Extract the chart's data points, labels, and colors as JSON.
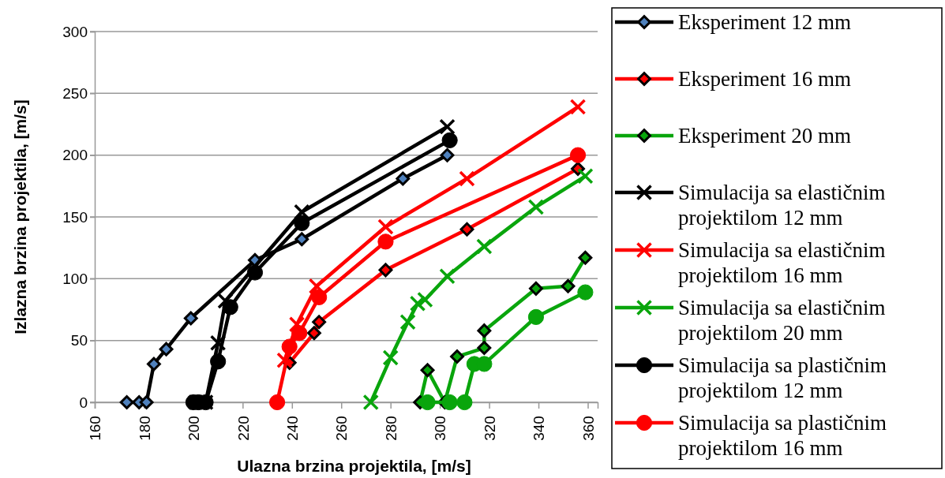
{
  "chart_data": {
    "type": "line",
    "xlabel": "Ulazna brzina projektila, [m/s]",
    "ylabel": "Izlazna brzina projektila, [m/s]",
    "xlim": [
      160,
      364
    ],
    "xticks": [
      160,
      180,
      200,
      220,
      240,
      260,
      280,
      300,
      320,
      340,
      360
    ],
    "ylim": [
      0,
      300
    ],
    "yticks": [
      0,
      50,
      100,
      150,
      200,
      250,
      300
    ],
    "grid": "y",
    "legend": "right",
    "series": [
      {
        "name": "Eksperiment 12 mm",
        "color": "#000000",
        "marker": "diamond",
        "x": [
          173,
          178,
          181,
          184,
          189,
          199,
          225,
          244,
          285,
          303
        ],
        "values": [
          0,
          0,
          0,
          31,
          43,
          68,
          115,
          132,
          181,
          200
        ],
        "colors": [
          "#4f81bd",
          "#4f81bd",
          "#4f81bd",
          "#4f81bd",
          "#4f81bd",
          "#4f81bd",
          "#4f81bd",
          "#4f81bd",
          "#4f81bd",
          "#4f81bd"
        ]
      },
      {
        "name": "Eksperiment 16 mm",
        "color": "#ff0000",
        "marker": "diamond",
        "x": [
          239,
          249,
          251,
          278,
          311,
          356
        ],
        "values": [
          32,
          56,
          65,
          107,
          140,
          189
        ]
      },
      {
        "name": "Eksperiment 20 mm",
        "color": "#09a50c",
        "marker": "diamond",
        "x": [
          292,
          295,
          302,
          307,
          318,
          318,
          339,
          352,
          359
        ],
        "values": [
          0,
          26,
          0,
          37,
          44,
          58,
          92,
          94,
          117
        ]
      },
      {
        "name": "Simulacija sa elastičnim projektilom 12 mm",
        "color": "#000000",
        "marker": "cross",
        "x": [
          201,
          205,
          210,
          213,
          244,
          303
        ],
        "values": [
          0,
          0,
          48,
          82,
          154,
          223
        ]
      },
      {
        "name": "Simulacija sa elastičnim projektilom 16 mm",
        "color": "#ff0000",
        "marker": "cross",
        "x": [
          237,
          242,
          250,
          278,
          311,
          356
        ],
        "values": [
          34,
          63,
          94,
          142,
          181,
          239
        ]
      },
      {
        "name": "Simulacija sa elastičnim projektilom 20 mm",
        "color": "#09a50c",
        "marker": "cross",
        "x": [
          272,
          280,
          287,
          291,
          294,
          303,
          318,
          339,
          359
        ],
        "values": [
          0,
          36,
          65,
          80,
          83,
          102,
          126,
          158,
          183
        ]
      },
      {
        "name": "Simulacija sa plastičnim projektilom 12 mm",
        "color": "#000000",
        "marker": "circle",
        "x": [
          200,
          202,
          205,
          210,
          215,
          225,
          244,
          304
        ],
        "values": [
          0,
          0,
          0,
          33,
          77,
          105,
          145,
          212
        ]
      },
      {
        "name": "Simulacija sa plastičnim projektilom 16 mm",
        "color": "#ff0000",
        "marker": "circle",
        "x": [
          234,
          239,
          243,
          251,
          278,
          356
        ],
        "values": [
          0,
          45,
          56,
          85,
          130,
          200
        ]
      },
      {
        "color": "#09a50c",
        "marker": "circle",
        "x": [
          295,
          304,
          310,
          314,
          318,
          339,
          359
        ],
        "values": [
          0,
          0,
          0,
          31,
          31,
          69,
          89
        ]
      }
    ]
  }
}
